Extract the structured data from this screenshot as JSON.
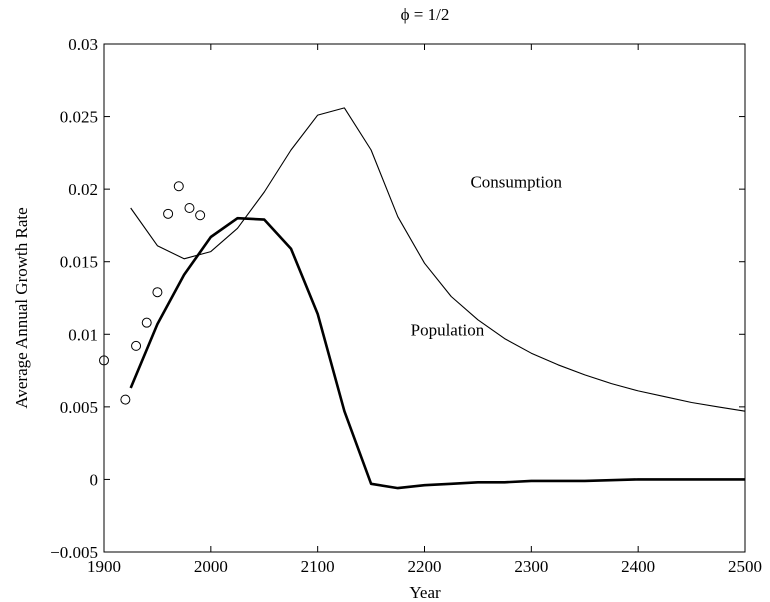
{
  "chart_data": {
    "type": "line",
    "title": "ϕ = 1/2",
    "xlabel": "Year",
    "ylabel": "Average Annual Growth Rate",
    "xlim": [
      1900,
      2500
    ],
    "ylim": [
      -0.005,
      0.03
    ],
    "xticks": [
      1900,
      2000,
      2100,
      2200,
      2300,
      2400,
      2500
    ],
    "yticks": [
      -0.005,
      0,
      0.005,
      0.01,
      0.015,
      0.02,
      0.025,
      0.03
    ],
    "xtick_labels": [
      "1900",
      "2000",
      "2100",
      "2200",
      "2300",
      "2400",
      "2500"
    ],
    "ytick_labels": [
      "−0.005",
      "0",
      "0.005",
      "0.01",
      "0.015",
      "0.02",
      "0.025",
      "0.03"
    ],
    "grid": false,
    "series": [
      {
        "name": "Consumption",
        "style": "thin-line",
        "color": "#000000",
        "x": [
          1925,
          1950,
          1975,
          2000,
          2025,
          2050,
          2075,
          2100,
          2125,
          2150,
          2175,
          2200,
          2225,
          2250,
          2275,
          2300,
          2325,
          2350,
          2375,
          2400,
          2425,
          2450,
          2475,
          2500
        ],
        "y": [
          0.0187,
          0.0161,
          0.0152,
          0.0157,
          0.0173,
          0.0198,
          0.0227,
          0.0251,
          0.0256,
          0.0227,
          0.0181,
          0.0149,
          0.0126,
          0.011,
          0.0097,
          0.0087,
          0.0079,
          0.0072,
          0.0066,
          0.0061,
          0.0057,
          0.0053,
          0.005,
          0.0047
        ]
      },
      {
        "name": "Population",
        "style": "thick-line",
        "color": "#000000",
        "x": [
          1925,
          1950,
          1975,
          2000,
          2025,
          2050,
          2075,
          2100,
          2125,
          2150,
          2175,
          2200,
          2225,
          2250,
          2275,
          2300,
          2350,
          2400,
          2450,
          2500
        ],
        "y": [
          0.0063,
          0.0107,
          0.0141,
          0.0167,
          0.018,
          0.0179,
          0.0159,
          0.0114,
          0.0047,
          -0.0003,
          -0.0006,
          -0.0004,
          -0.0003,
          -0.0002,
          -0.0002,
          -0.0001,
          -0.0001,
          0,
          0,
          0
        ]
      },
      {
        "name": "",
        "style": "circles",
        "color": "#000000",
        "x": [
          1900,
          1920,
          1930,
          1940,
          1950,
          1960,
          1970,
          1980,
          1990
        ],
        "y": [
          0.0082,
          0.0055,
          0.0092,
          0.0108,
          0.0129,
          0.0183,
          0.0202,
          0.0187,
          0.0182
        ]
      }
    ],
    "annotations": [
      {
        "text": "Consumption",
        "x": 2243,
        "y": 0.0201
      },
      {
        "text": "Population",
        "x": 2187,
        "y": 0.0099
      }
    ]
  }
}
